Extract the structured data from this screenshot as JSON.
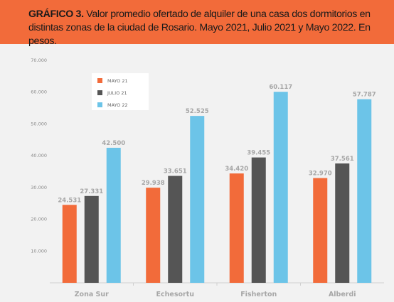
{
  "header": {
    "title_bold": "GRÁFICO 3.",
    "title_rest": " Valor promedio ofertado de alquiler de una casa dos dormitorios en distintas zonas de la ciudad de Rosario. Mayo 2021, Julio 2021 y Mayo 2022. En pesos."
  },
  "colors": {
    "header_bg": "#f26b3a",
    "mayo21": "#f26b3a",
    "julio21": "#555555",
    "mayo22": "#6cc4e8"
  },
  "chart_data": {
    "type": "bar",
    "title": "",
    "xlabel": "",
    "ylabel": "",
    "ylim": [
      0,
      70000
    ],
    "yticks": [
      "",
      "10.000",
      "20.000",
      "30.000",
      "40.000",
      "50.000",
      "60.000",
      "70.000"
    ],
    "categories": [
      "Zona Sur",
      "Echesortu",
      "Fisherton",
      "Alberdi"
    ],
    "series": [
      {
        "name": "MAYO 21",
        "values": [
          24531,
          29938,
          34420,
          32970
        ],
        "labels": [
          "24.531",
          "29.938",
          "34.420",
          "32.970"
        ]
      },
      {
        "name": "JULIO 21",
        "values": [
          27331,
          33651,
          39455,
          37561
        ],
        "labels": [
          "27.331",
          "33.651",
          "39.455",
          "37.561"
        ]
      },
      {
        "name": "MAYO 22",
        "values": [
          42500,
          52525,
          60117,
          57787
        ],
        "labels": [
          "42.500",
          "52.525",
          "60.117",
          "57.787"
        ]
      }
    ],
    "legend_position": "top-left",
    "grid": false
  }
}
